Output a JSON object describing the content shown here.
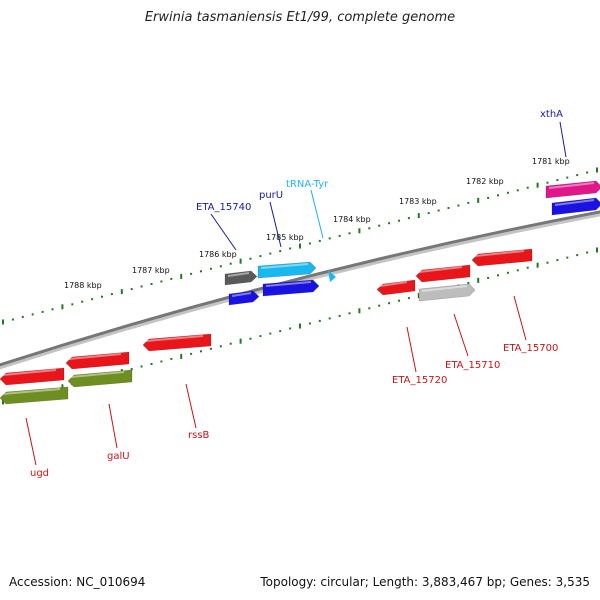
{
  "title": "Erwinia tasmaniensis Et1/99, complete genome",
  "footer": {
    "accession": "Accession: NC_010694",
    "summary": "Topology: circular; Length: 3,883,467 bp; Genes: 3,535"
  },
  "colors": {
    "backbone": "#8a8a8a",
    "tick": "#1f7a1f",
    "red": "#e8161a",
    "blue": "#1a12e0",
    "cyan": "#1ab8f0",
    "olive": "#6e8e22",
    "gray_dark": "#5a5a5a",
    "gray_light": "#bdbdbd",
    "magenta": "#e0168a",
    "label_blue": "#1a1aa0",
    "label_red": "#c8141a",
    "label_cyan": "#22b4ee"
  },
  "scale_labels": [
    "1781 kbp",
    "1782 kbp",
    "1783 kbp",
    "1784 kbp",
    "1785 kbp",
    "1786 kbp",
    "1787 kbp",
    "1788 kbp"
  ],
  "gene_labels": [
    {
      "id": "xthA",
      "text": "xthA",
      "color": "label_blue"
    },
    {
      "id": "trna-tyr",
      "text": "tRNA-Tyr",
      "color": "label_cyan"
    },
    {
      "id": "puru",
      "text": "purU",
      "color": "label_blue"
    },
    {
      "id": "eta-15740",
      "text": "ETA_15740",
      "color": "label_blue"
    },
    {
      "id": "eta-15700",
      "text": "ETA_15700",
      "color": "label_red"
    },
    {
      "id": "eta-15710",
      "text": "ETA_15710",
      "color": "label_red"
    },
    {
      "id": "eta-15720",
      "text": "ETA_15720",
      "color": "label_red"
    },
    {
      "id": "rssb",
      "text": "rssB",
      "color": "label_red"
    },
    {
      "id": "galu",
      "text": "galU",
      "color": "label_red"
    },
    {
      "id": "ugd",
      "text": "ugd",
      "color": "label_red"
    }
  ]
}
